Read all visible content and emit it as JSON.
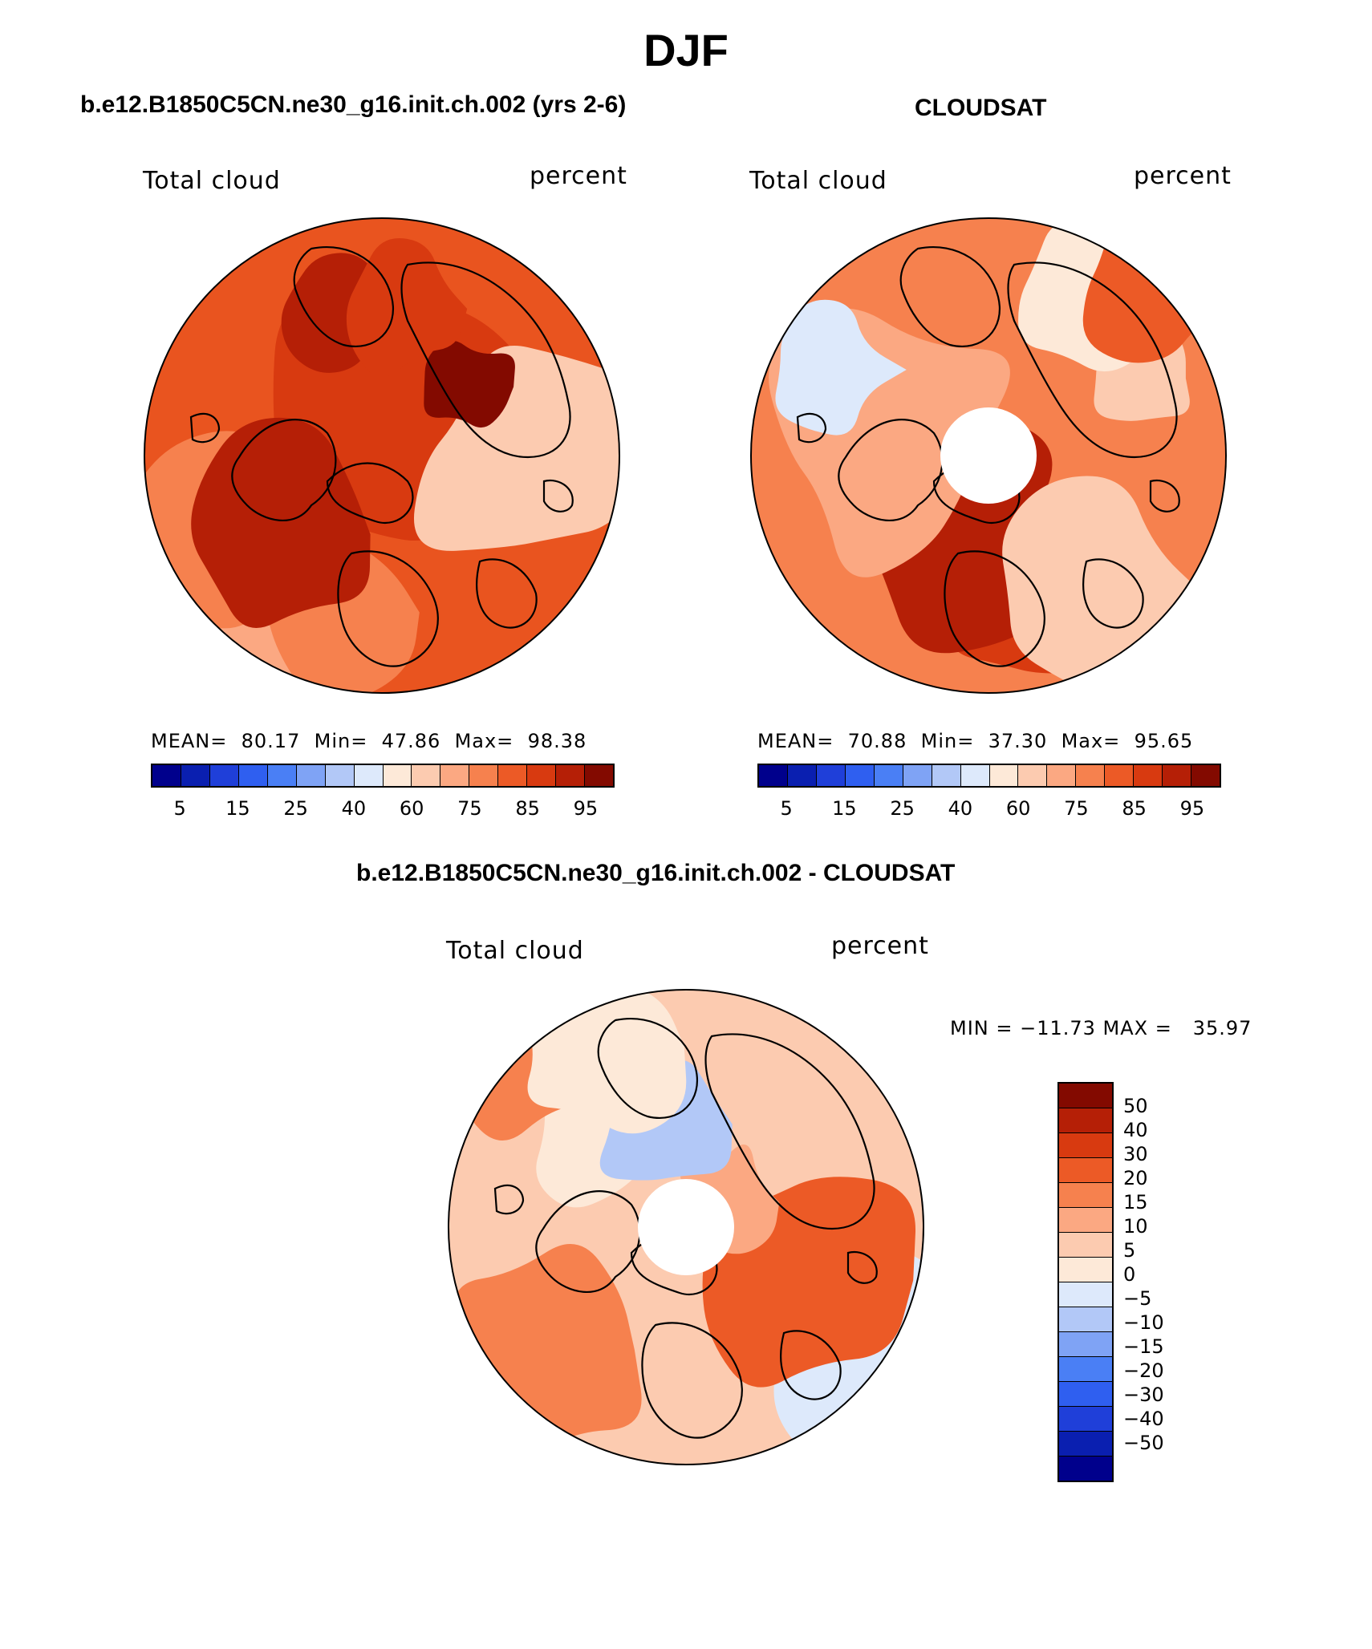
{
  "title": "DJF",
  "panels": {
    "model": {
      "title": "b.e12.B1850C5CN.ne30_g16.init.ch.002 (yrs 2-6)",
      "variable": "Total cloud",
      "units": "percent",
      "mean_label": "MEAN=",
      "mean": "80.17",
      "min_label": "Min=",
      "min": "47.86",
      "max_label": "Max=",
      "max": "98.38"
    },
    "obs": {
      "title": "CLOUDSAT",
      "variable": "Total cloud",
      "units": "percent",
      "mean_label": "MEAN=",
      "mean": "70.88",
      "min_label": "Min=",
      "min": "37.30",
      "max_label": "Max=",
      "max": "95.65"
    },
    "diff": {
      "title": "b.e12.B1850C5CN.ne30_g16.init.ch.002 - CLOUDSAT",
      "variable": "Total cloud",
      "units": "percent",
      "range_text": "MIN = −11.73 MAX =   35.97"
    }
  },
  "colorbar": {
    "colors": [
      "#00008c",
      "#0a1fb0",
      "#1f3fd9",
      "#2f5ff0",
      "#4a7ff5",
      "#7fa3f5",
      "#b2c8f7",
      "#dde9fb",
      "#fde9d8",
      "#fccbb0",
      "#fba882",
      "#f6814e",
      "#ec5a26",
      "#d83a10",
      "#b51f06",
      "#830a00"
    ],
    "labels": [
      "5",
      "15",
      "25",
      "40",
      "60",
      "75",
      "85",
      "95"
    ]
  },
  "diff_colorbar": {
    "colors": [
      "#830a00",
      "#b51f06",
      "#d83a10",
      "#ec5a26",
      "#f6814e",
      "#fba882",
      "#fccbb0",
      "#fde9d8",
      "#dde9fb",
      "#b2c8f7",
      "#7fa3f5",
      "#4a7ff5",
      "#2f5ff0",
      "#1f3fd9",
      "#0a1fb0",
      "#00008c"
    ],
    "labels": [
      "50",
      "40",
      "30",
      "20",
      "15",
      "10",
      "5",
      "0",
      "−5",
      "−10",
      "−15",
      "−20",
      "−30",
      "−40",
      "−50"
    ]
  },
  "maps": {
    "model": {
      "background": "#e9541f",
      "has_mask": false,
      "blobs": [
        {
          "c": "#d83a10",
          "seed": 1
        },
        {
          "c": "#b51f06",
          "seed": 2
        },
        {
          "c": "#fba882",
          "seed": 3
        },
        {
          "c": "#f6814e",
          "seed": 4
        },
        {
          "c": "#fccbb0",
          "seed": 5
        },
        {
          "c": "#830a00",
          "seed": 6
        },
        {
          "c": "#d83a10",
          "seed": 7
        },
        {
          "c": "#f6814e",
          "seed": 8
        },
        {
          "c": "#b51f06",
          "seed": 9
        }
      ]
    },
    "obs": {
      "background": "#f6814e",
      "has_mask": true,
      "blobs": [
        {
          "c": "#fccbb0",
          "seed": 11
        },
        {
          "c": "#fde9d8",
          "seed": 12
        },
        {
          "c": "#d83a10",
          "seed": 13
        },
        {
          "c": "#b51f06",
          "seed": 14
        },
        {
          "c": "#fba882",
          "seed": 15
        },
        {
          "c": "#dde9fb",
          "seed": 16
        },
        {
          "c": "#ec5a26",
          "seed": 17
        },
        {
          "c": "#fccbb0",
          "seed": 18
        }
      ]
    },
    "diff": {
      "background": "#fccbb0",
      "has_mask": true,
      "blobs": [
        {
          "c": "#fde9d8",
          "seed": 21
        },
        {
          "c": "#f6814e",
          "seed": 22
        },
        {
          "c": "#dde9fb",
          "seed": 23
        },
        {
          "c": "#ec5a26",
          "seed": 24
        },
        {
          "c": "#fba882",
          "seed": 25
        },
        {
          "c": "#b2c8f7",
          "seed": 26
        },
        {
          "c": "#fde9d8",
          "seed": 27
        },
        {
          "c": "#f6814e",
          "seed": 28
        }
      ]
    }
  }
}
